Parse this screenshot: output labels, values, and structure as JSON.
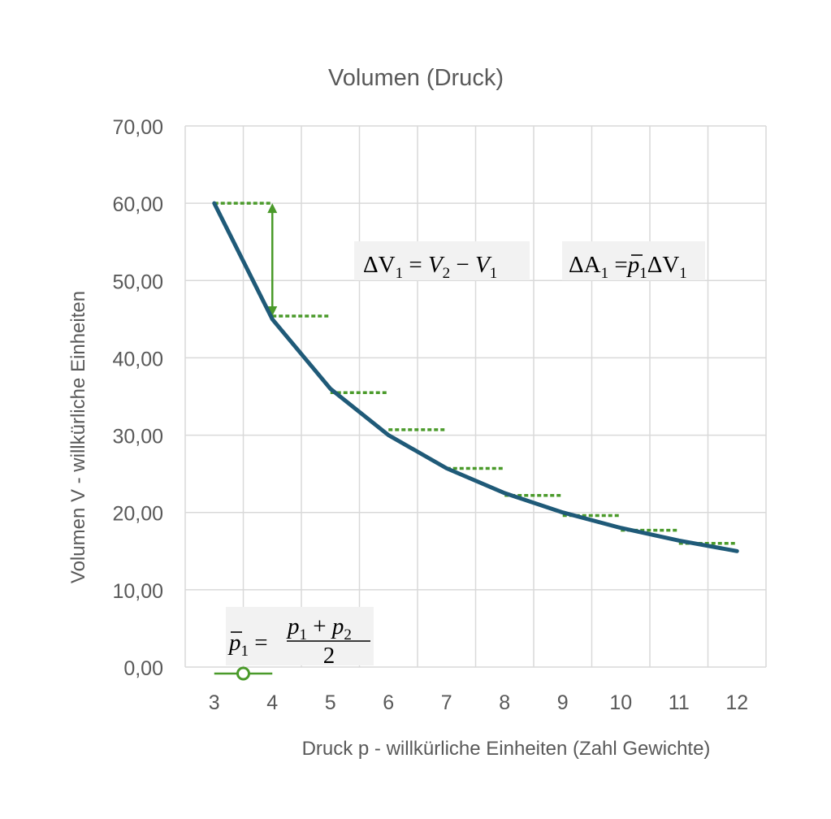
{
  "chart_data": {
    "type": "line",
    "title": "Volumen (Druck)",
    "xlabel": "Druck p - willkürliche Einheiten (Zahl Gewichte)",
    "ylabel": "Volumen V - willkürliche Einheiten",
    "xlim": [
      2.5,
      12.5
    ],
    "ylim": [
      0,
      70
    ],
    "x_ticks": [
      "3",
      "4",
      "5",
      "6",
      "7",
      "8",
      "9",
      "10",
      "11",
      "12"
    ],
    "y_ticks": [
      "0,00",
      "10,00",
      "20,00",
      "30,00",
      "40,00",
      "50,00",
      "60,00",
      "70,00"
    ],
    "grid": true,
    "series": [
      {
        "name": "Volumen",
        "color": "#1f5a78",
        "x": [
          3,
          4,
          5,
          6,
          7,
          8,
          9,
          10,
          11,
          12
        ],
        "values": [
          60.0,
          45.0,
          36.0,
          30.0,
          25.71,
          22.5,
          20.0,
          18.0,
          16.36,
          15.0
        ]
      }
    ],
    "step_markers": {
      "color": "#4a9a2a",
      "levels": [
        {
          "x_from": 3.0,
          "x_to": 4.0,
          "y": 60.0
        },
        {
          "x_from": 4.0,
          "x_to": 5.0,
          "y": 45.4
        },
        {
          "x_from": 5.0,
          "x_to": 6.0,
          "y": 35.5
        },
        {
          "x_from": 6.0,
          "x_to": 7.0,
          "y": 30.7
        },
        {
          "x_from": 7.0,
          "x_to": 8.0,
          "y": 25.7
        },
        {
          "x_from": 8.0,
          "x_to": 9.0,
          "y": 22.2
        },
        {
          "x_from": 9.0,
          "x_to": 10.0,
          "y": 19.6
        },
        {
          "x_from": 10.0,
          "x_to": 11.0,
          "y": 17.7
        },
        {
          "x_from": 11.0,
          "x_to": 12.0,
          "y": 16.0
        }
      ],
      "arrow": {
        "x": 4.0,
        "y_from": 45.4,
        "y_to": 60.0
      }
    },
    "legend_marker": {
      "x_from": 3.0,
      "x_to": 4.0,
      "x_circle": 3.5,
      "color": "#4a9a2a"
    },
    "annotations": {
      "delta_v": {
        "lhs": "ΔV",
        "sub": "1",
        "rhs_a": "V",
        "rhs_a_sub": "2",
        "rhs_b": "V",
        "rhs_b_sub": "1"
      },
      "delta_a": {
        "lhs": "ΔA",
        "sub": "1",
        "p": "p",
        "p_sub": "1",
        "dv": "ΔV",
        "dv_sub": "1"
      },
      "p_bar": {
        "p": "p",
        "sub": "1",
        "num_a": "p",
        "num_a_sub": "1",
        "num_b": "p",
        "num_b_sub": "2",
        "den": "2"
      }
    }
  }
}
